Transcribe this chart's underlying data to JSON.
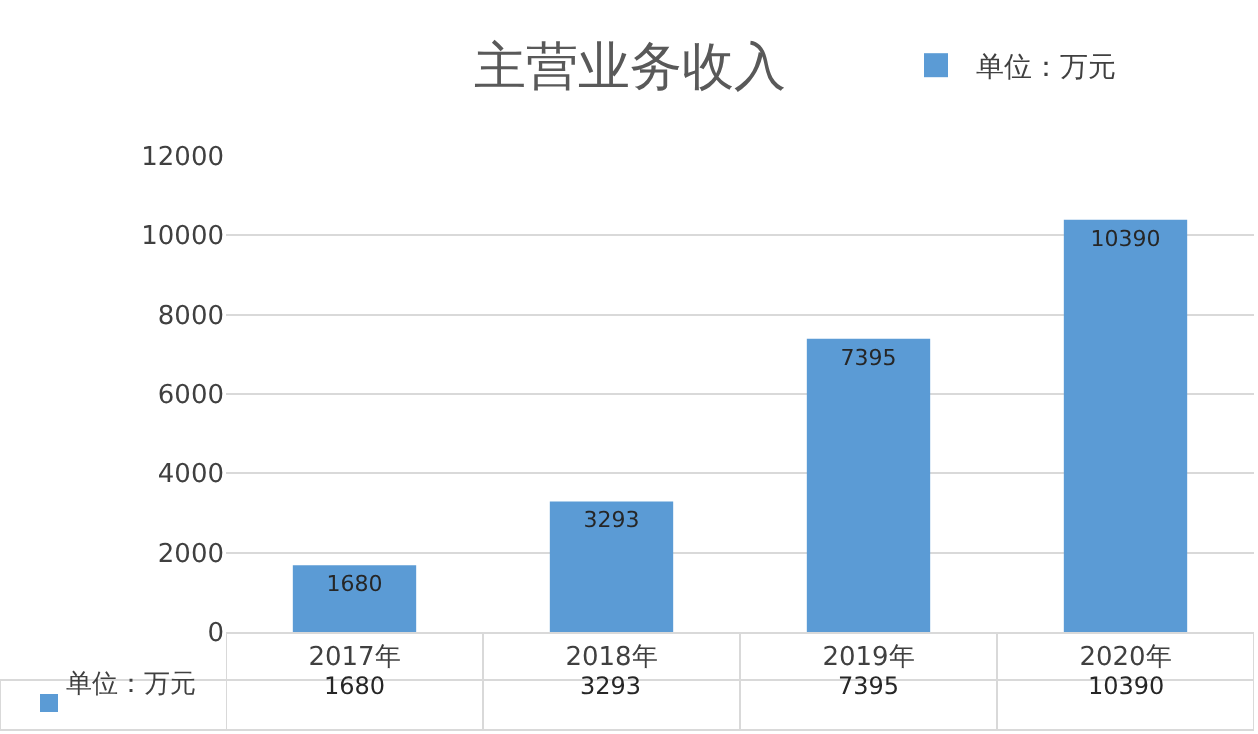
{
  "chart_data": {
    "type": "bar",
    "title": "主营业务收入",
    "categories": [
      "2017年",
      "2018年",
      "2019年",
      "2020年"
    ],
    "series": [
      {
        "name": "单位：万元",
        "color": "#5b9bd5",
        "values": [
          1680,
          3293,
          7395,
          10390
        ],
        "value_labels": [
          "1680",
          "3293",
          "7395",
          "10390"
        ]
      }
    ],
    "ylim": [
      0,
      12000
    ],
    "yticks": [
      0,
      2000,
      4000,
      6000,
      8000,
      10000,
      12000
    ],
    "grid": "y",
    "legend": "top right",
    "annotations": [
      "单位：万元",
      "1680",
      "3293",
      "7395",
      "10390"
    ]
  }
}
